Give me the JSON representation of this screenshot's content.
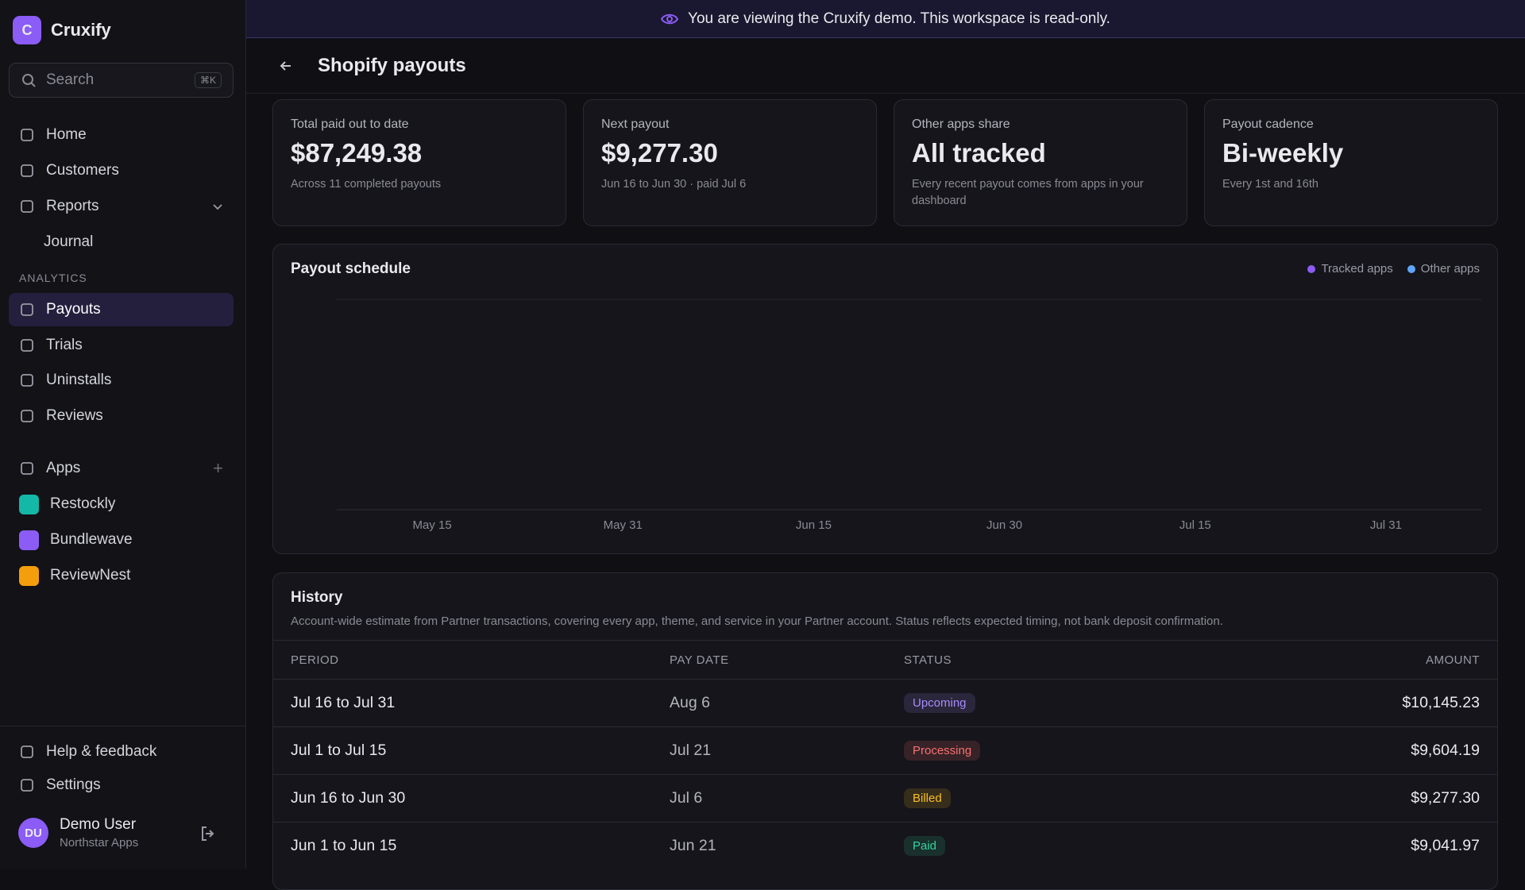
{
  "banner": "You are viewing the Cruxify demo. This workspace is read-only.",
  "sidebar": {
    "brand": {
      "initial": "C",
      "name": "Cruxify"
    },
    "search": {
      "placeholder": "Search",
      "shortcut": "⌘K"
    },
    "nav": [
      "Home",
      "Customers",
      "Reports",
      "Journal"
    ],
    "section": "ANALYTICS",
    "analytics": [
      "Payouts",
      "Trials",
      "Uninstalls",
      "Reviews"
    ],
    "apps_label": "Apps",
    "apps": [
      {
        "name": "Restockly",
        "color": "#14b8a6"
      },
      {
        "name": "Bundlewave",
        "color": "#8b5cf6"
      },
      {
        "name": "ReviewNest",
        "color": "#f59e0b"
      }
    ],
    "footer": [
      "Help & feedback",
      "Settings"
    ],
    "user": {
      "initials": "DU",
      "name": "Demo User",
      "org": "Northstar Apps"
    }
  },
  "header": {
    "title": "Shopify payouts"
  },
  "cards": [
    {
      "label": "Total paid out to date",
      "value": "$87,249.38",
      "note": "Across 11 completed payouts"
    },
    {
      "label": "Next payout",
      "value": "$9,277.30",
      "note": "Jun 16 to Jun 30 · paid Jul 6"
    },
    {
      "label": "Other apps share",
      "value": "All tracked",
      "note": "Every recent payout comes from apps in your dashboard"
    },
    {
      "label": "Payout cadence",
      "value": "Bi-weekly",
      "note": "Every 1st and 16th"
    }
  ],
  "chart": {
    "title": "Payout schedule",
    "legend": [
      {
        "name": "Tracked apps",
        "color": "#8b5cf6"
      },
      {
        "name": "Other apps",
        "color": "#60a5fa"
      }
    ],
    "xticks": [
      "May 15",
      "May 31",
      "Jun 15",
      "Jun 30",
      "Jul 15",
      "Jul 31"
    ]
  },
  "history": {
    "title": "History",
    "subtitle": "Account-wide estimate from Partner transactions, covering every app, theme, and service in your Partner account. Status reflects expected timing, not bank deposit confirmation.",
    "columns": [
      "PERIOD",
      "PAY DATE",
      "STATUS",
      "AMOUNT"
    ],
    "rows": [
      {
        "period": "Jul 16 to Jul 31",
        "pay_date": "Aug 6",
        "status": "Upcoming",
        "status_color": "#a78bfa",
        "amount": "$10,145.23"
      },
      {
        "period": "Jul 1 to Jul 15",
        "pay_date": "Jul 21",
        "status": "Processing",
        "status_color": "#f87171",
        "amount": "$9,604.19"
      },
      {
        "period": "Jun 16 to Jun 30",
        "pay_date": "Jul 6",
        "status": "Billed",
        "status_color": "#fbbf24",
        "amount": "$9,277.30"
      },
      {
        "period": "Jun 1 to Jun 15",
        "pay_date": "Jun 21",
        "status": "Paid",
        "status_color": "#34d399",
        "amount": "$9,041.97"
      }
    ]
  }
}
